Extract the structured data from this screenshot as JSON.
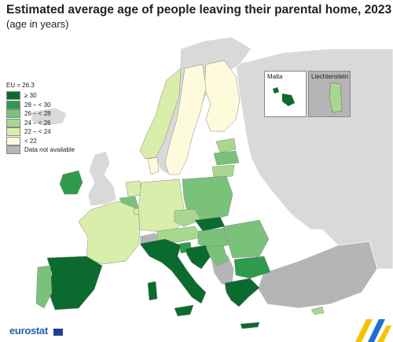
{
  "title": "Estimated average age of people leaving their parental home, 2023",
  "subtitle": "(age in years)",
  "legend": {
    "title": "EU = 26.3",
    "items": [
      {
        "label": "≥ 30",
        "color": "#0b6b2e"
      },
      {
        "label": "28 – < 30",
        "color": "#2e9b4c"
      },
      {
        "label": "26 – < 28",
        "color": "#7ac27a"
      },
      {
        "label": "24 – < 26",
        "color": "#a8d890"
      },
      {
        "label": "22 – < 24",
        "color": "#d8eeaa"
      },
      {
        "label": "< 22",
        "color": "#fdfbdc"
      },
      {
        "label": "Data not available",
        "color": "#b5b5b5"
      }
    ]
  },
  "insets": {
    "malta": "Malta",
    "liechtenstein": "Liechtenstein"
  },
  "colors": {
    "sea": "#ffffff",
    "non_eu": "#d9d9d9",
    "borders": "#ffffff"
  },
  "logo": "eurostat"
}
